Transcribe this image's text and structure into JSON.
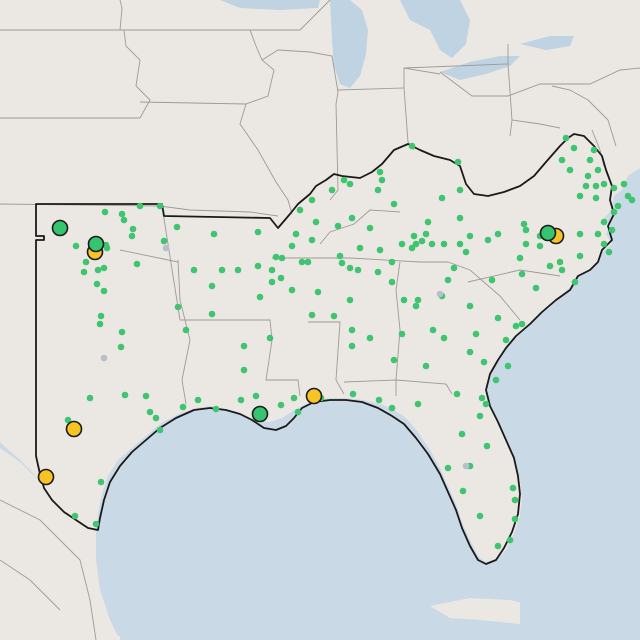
{
  "map": {
    "colors": {
      "land": "#ebe8e4",
      "water": "#c9d9e6",
      "state_border": "#9e9a96",
      "region_outline": "#1a1a1a",
      "station_small": "#3fc46f",
      "station_large_green": "#35c46f",
      "station_large_yellow": "#f7c325",
      "station_large_stroke": "#1a1a1a",
      "inactive_station": "#b7bfc8",
      "lake": "#bfd3e3"
    },
    "legend": null,
    "region_name": "",
    "small_station_count": 230,
    "large_green_station_count": 4,
    "large_yellow_station_count": 6
  }
}
